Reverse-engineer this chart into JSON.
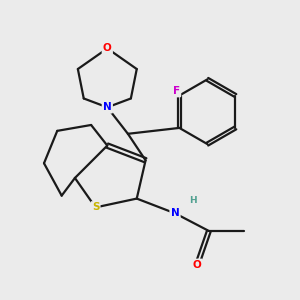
{
  "background_color": "#ebebeb",
  "atom_colors": {
    "O": "#ff0000",
    "N": "#0000ff",
    "S": "#c8b400",
    "F": "#cc00cc",
    "H": "#50a090",
    "C": "#000000"
  },
  "bond_color": "#1a1a1a",
  "bond_width": 1.6,
  "figsize": [
    3.0,
    3.0
  ],
  "dpi": 100,
  "xlim": [
    0,
    10
  ],
  "ylim": [
    0,
    10
  ]
}
